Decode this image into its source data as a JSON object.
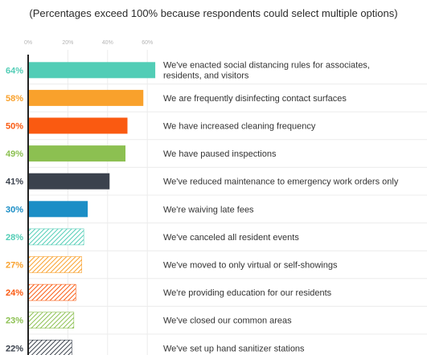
{
  "chart_data": {
    "type": "bar",
    "orientation": "horizontal",
    "subtitle": "(Percentages exceed 100% because respondents could select multiple options)",
    "x_ticks": [
      "0%",
      "20%",
      "40%",
      "60%"
    ],
    "xlim": [
      0,
      64
    ],
    "grid": true,
    "categories": [
      "We've enacted social distancing rules for associates, residents, and visitors",
      "We are frequently disinfecting contact surfaces",
      "We have increased cleaning frequency",
      "We have paused inspections",
      "We've reduced maintenance to emergency work orders only",
      "We're waiving late fees",
      "We've canceled all resident events",
      "We've moved to only virtual or self-showings",
      "We're providing education for our residents",
      "We've closed our common areas",
      "We've set up hand sanitizer stations"
    ],
    "values": [
      64,
      58,
      50,
      49,
      41,
      30,
      28,
      27,
      24,
      23,
      22
    ],
    "value_labels": [
      "64%",
      "58%",
      "50%",
      "49%",
      "41%",
      "30%",
      "28%",
      "27%",
      "24%",
      "23%",
      "22%"
    ],
    "colors": [
      "#52cdb6",
      "#f9a12c",
      "#fa5a11",
      "#8cc051",
      "#3b424d",
      "#1b8ec6",
      "#52cdb6",
      "#f9a12c",
      "#fa5a11",
      "#8cc051",
      "#3b424d"
    ],
    "hatched": [
      false,
      false,
      false,
      false,
      false,
      false,
      true,
      true,
      true,
      true,
      true
    ]
  }
}
